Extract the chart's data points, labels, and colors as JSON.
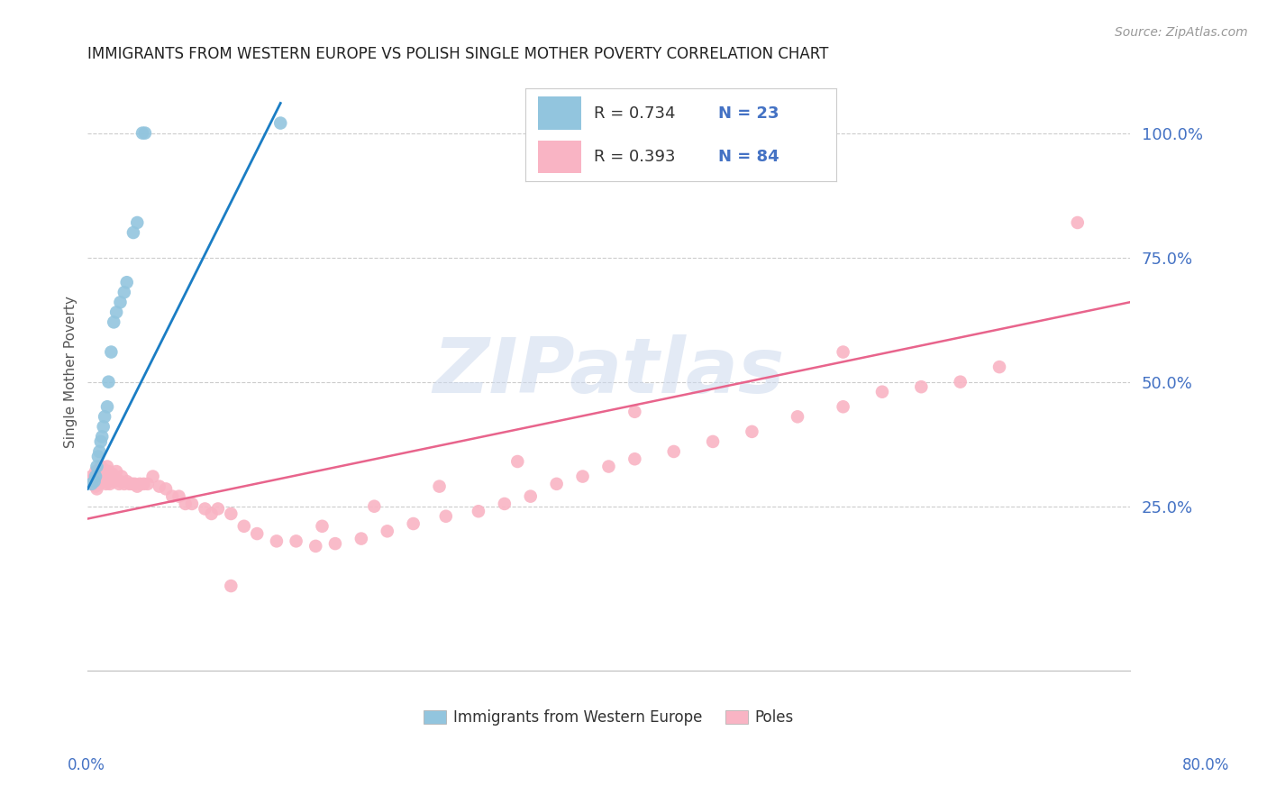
{
  "title": "IMMIGRANTS FROM WESTERN EUROPE VS POLISH SINGLE MOTHER POVERTY CORRELATION CHART",
  "source": "Source: ZipAtlas.com",
  "ylabel": "Single Mother Poverty",
  "ytick_labels": [
    "100.0%",
    "75.0%",
    "50.0%",
    "25.0%"
  ],
  "ytick_values": [
    1.0,
    0.75,
    0.5,
    0.25
  ],
  "xlim": [
    0.0,
    0.8
  ],
  "ylim": [
    -0.08,
    1.12
  ],
  "legend_r1": "R = 0.734",
  "legend_n1": "N = 23",
  "legend_r2": "R = 0.393",
  "legend_n2": "N = 84",
  "color_blue": "#92c5de",
  "color_pink": "#f9b4c4",
  "line_blue": "#1a7dc4",
  "line_pink": "#e8648c",
  "watermark_text": "ZIPatlas",
  "blue_line_x": [
    0.0,
    0.148
  ],
  "blue_line_y": [
    0.285,
    1.06
  ],
  "pink_line_x": [
    0.0,
    0.8
  ],
  "pink_line_y": [
    0.225,
    0.66
  ],
  "blue_x": [
    0.003,
    0.005,
    0.006,
    0.007,
    0.008,
    0.009,
    0.01,
    0.011,
    0.012,
    0.013,
    0.015,
    0.016,
    0.018,
    0.02,
    0.022,
    0.025,
    0.028,
    0.03,
    0.035,
    0.038,
    0.042,
    0.044,
    0.148
  ],
  "blue_y": [
    0.295,
    0.3,
    0.31,
    0.33,
    0.35,
    0.36,
    0.38,
    0.39,
    0.41,
    0.43,
    0.45,
    0.5,
    0.56,
    0.62,
    0.64,
    0.66,
    0.68,
    0.7,
    0.8,
    0.82,
    1.0,
    1.0,
    1.02
  ],
  "pink_x": [
    0.003,
    0.004,
    0.005,
    0.006,
    0.006,
    0.007,
    0.007,
    0.008,
    0.008,
    0.009,
    0.01,
    0.01,
    0.011,
    0.012,
    0.012,
    0.013,
    0.013,
    0.014,
    0.015,
    0.015,
    0.016,
    0.016,
    0.017,
    0.018,
    0.019,
    0.02,
    0.022,
    0.024,
    0.025,
    0.026,
    0.028,
    0.03,
    0.032,
    0.034,
    0.036,
    0.038,
    0.04,
    0.043,
    0.046,
    0.05,
    0.055,
    0.06,
    0.065,
    0.07,
    0.075,
    0.08,
    0.09,
    0.095,
    0.1,
    0.11,
    0.12,
    0.13,
    0.145,
    0.16,
    0.175,
    0.19,
    0.21,
    0.23,
    0.25,
    0.275,
    0.3,
    0.32,
    0.34,
    0.36,
    0.38,
    0.4,
    0.42,
    0.45,
    0.48,
    0.51,
    0.545,
    0.58,
    0.61,
    0.64,
    0.67,
    0.7,
    0.58,
    0.42,
    0.33,
    0.27,
    0.22,
    0.18,
    0.11,
    0.76
  ],
  "pink_y": [
    0.31,
    0.305,
    0.295,
    0.29,
    0.32,
    0.285,
    0.31,
    0.3,
    0.32,
    0.295,
    0.31,
    0.33,
    0.305,
    0.3,
    0.325,
    0.31,
    0.3,
    0.295,
    0.31,
    0.33,
    0.305,
    0.32,
    0.295,
    0.305,
    0.315,
    0.3,
    0.32,
    0.295,
    0.3,
    0.31,
    0.295,
    0.3,
    0.295,
    0.295,
    0.295,
    0.29,
    0.295,
    0.295,
    0.295,
    0.31,
    0.29,
    0.285,
    0.27,
    0.27,
    0.255,
    0.255,
    0.245,
    0.235,
    0.245,
    0.235,
    0.21,
    0.195,
    0.18,
    0.18,
    0.17,
    0.175,
    0.185,
    0.2,
    0.215,
    0.23,
    0.24,
    0.255,
    0.27,
    0.295,
    0.31,
    0.33,
    0.345,
    0.36,
    0.38,
    0.4,
    0.43,
    0.45,
    0.48,
    0.49,
    0.5,
    0.53,
    0.56,
    0.44,
    0.34,
    0.29,
    0.25,
    0.21,
    0.09,
    0.82
  ]
}
